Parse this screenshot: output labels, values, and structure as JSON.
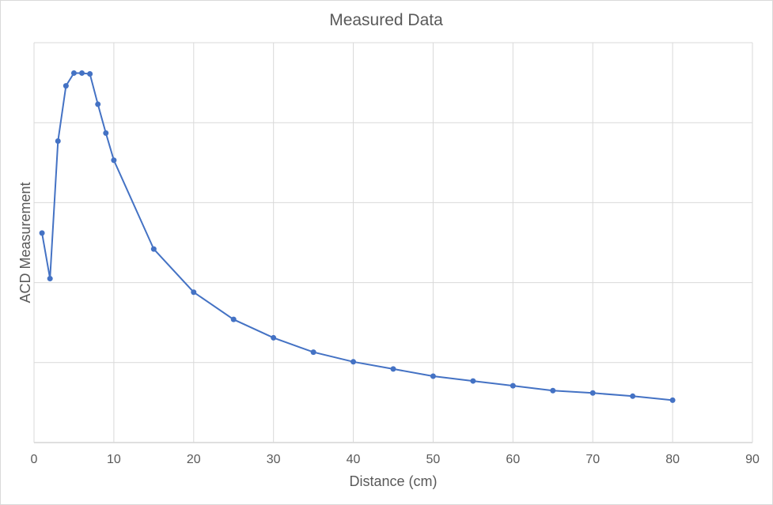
{
  "chart_data": {
    "type": "scatter",
    "title": "Measured Data",
    "xlabel": "Distance (cm)",
    "ylabel": "ACD Measurement",
    "xlim": [
      0,
      90
    ],
    "ylim": [
      0,
      5
    ],
    "x_ticks": [
      0,
      10,
      20,
      30,
      40,
      50,
      60,
      70,
      80,
      90
    ],
    "y_tick_labels_shown": false,
    "grid": true,
    "line_color": "#4472c4",
    "series": [
      {
        "x": [
          1,
          2,
          3,
          4,
          5,
          6,
          7,
          8,
          9,
          10,
          15,
          20,
          25,
          30,
          35,
          40,
          45,
          50,
          55,
          60,
          65,
          70,
          75,
          80
        ],
        "y": [
          2.62,
          2.05,
          3.77,
          4.46,
          4.62,
          4.62,
          4.61,
          4.23,
          3.87,
          3.53,
          2.42,
          1.88,
          1.54,
          1.31,
          1.13,
          1.01,
          0.92,
          0.83,
          0.77,
          0.71,
          0.65,
          0.62,
          0.58,
          0.53
        ]
      }
    ]
  }
}
